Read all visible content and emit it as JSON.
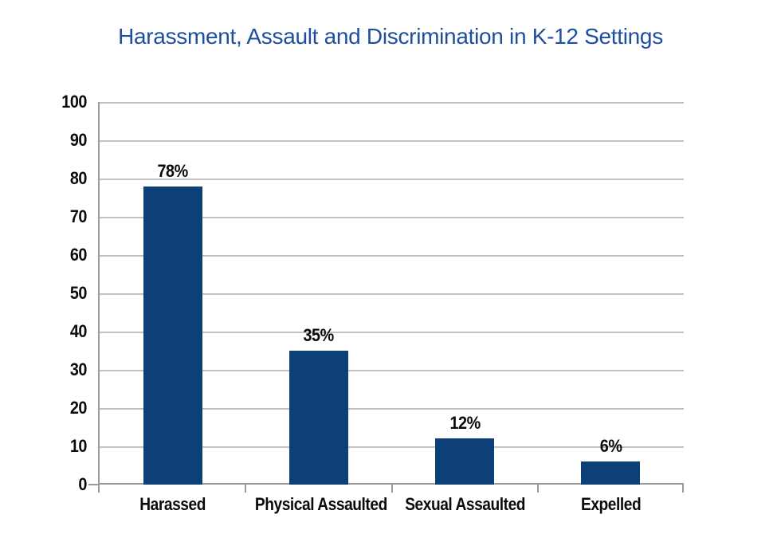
{
  "page": {
    "background": "#ffffff"
  },
  "chart_data": {
    "type": "bar",
    "title": "Harassment, Assault and Discrimination in K-12 Settings",
    "categories": [
      "Harassed",
      "Physical Assaulted",
      "Sexual Assaulted",
      "Expelled"
    ],
    "values": [
      78,
      35,
      12,
      6
    ],
    "value_labels": [
      "78%",
      "35%",
      "12%",
      "6%"
    ],
    "yticks": [
      0,
      10,
      20,
      30,
      40,
      50,
      60,
      70,
      80,
      90,
      100
    ],
    "ylim": [
      0,
      100
    ],
    "xlabel": "",
    "ylabel": "",
    "grid": "horizontal",
    "legend": "none",
    "colors": {
      "bar": "#0e4078",
      "title": "#1d4f9e",
      "label_text": "#0a0a0a",
      "gridline": "#c2c2c2",
      "axis": "#9a9a9a"
    }
  }
}
